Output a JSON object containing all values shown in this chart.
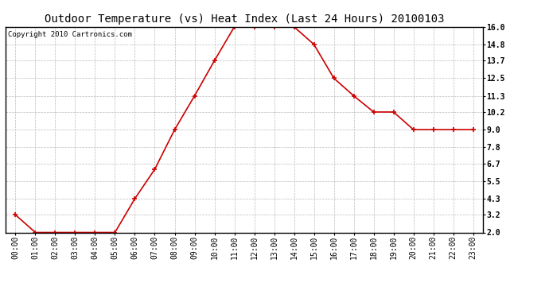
{
  "title": "Outdoor Temperature (vs) Heat Index (Last 24 Hours) 20100103",
  "copyright_text": "Copyright 2010 Cartronics.com",
  "x_labels": [
    "00:00",
    "01:00",
    "02:00",
    "03:00",
    "04:00",
    "05:00",
    "06:00",
    "07:00",
    "08:00",
    "09:00",
    "10:00",
    "11:00",
    "12:00",
    "13:00",
    "14:00",
    "15:00",
    "16:00",
    "17:00",
    "18:00",
    "19:00",
    "20:00",
    "21:00",
    "22:00",
    "23:00"
  ],
  "y_values": [
    3.2,
    2.0,
    2.0,
    2.0,
    2.0,
    2.0,
    4.3,
    6.3,
    9.0,
    11.3,
    13.7,
    16.0,
    16.0,
    16.0,
    16.0,
    14.8,
    12.5,
    11.3,
    10.2,
    10.2,
    9.0,
    9.0,
    9.0,
    9.0
  ],
  "y_ticks": [
    2.0,
    3.2,
    4.3,
    5.5,
    6.7,
    7.8,
    9.0,
    10.2,
    11.3,
    12.5,
    13.7,
    14.8,
    16.0
  ],
  "ylim": [
    2.0,
    16.0
  ],
  "line_color": "#cc0000",
  "marker": "+",
  "marker_color": "#cc0000",
  "bg_color": "#ffffff",
  "grid_color": "#bbbbbb",
  "title_fontsize": 10,
  "copyright_fontsize": 6.5,
  "tick_fontsize": 7,
  "ytick_fontsize": 7
}
